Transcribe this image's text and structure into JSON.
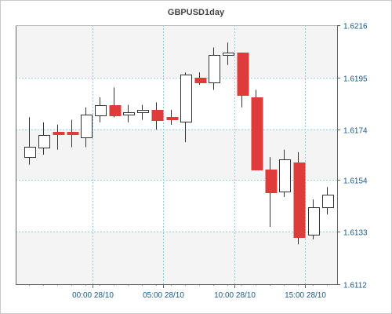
{
  "chart_data": {
    "type": "candlestick",
    "title": "GBPUSD1day",
    "xlabel": "",
    "ylabel": "",
    "ylim": [
      1.6112,
      1.6216
    ],
    "y_ticks": [
      "1.6216",
      "1.6195",
      "1.6174",
      "1.6154",
      "1.6133",
      "1.6112"
    ],
    "x_ticks": [
      "00:00 28/10",
      "05:00 28/10",
      "10:00 28/10",
      "15:00 28/10"
    ],
    "grid": true,
    "up_color": "#ffffff",
    "down_color": "#e03b3b",
    "candles": [
      {
        "open": 1.6163,
        "high": 1.6179,
        "low": 1.616,
        "close": 1.6167
      },
      {
        "open": 1.6167,
        "high": 1.6177,
        "low": 1.6164,
        "close": 1.6172
      },
      {
        "open": 1.6173,
        "high": 1.6176,
        "low": 1.6166,
        "close": 1.6172
      },
      {
        "open": 1.6173,
        "high": 1.6178,
        "low": 1.6167,
        "close": 1.6172
      },
      {
        "open": 1.6171,
        "high": 1.6183,
        "low": 1.6167,
        "close": 1.618
      },
      {
        "open": 1.618,
        "high": 1.6187,
        "low": 1.6177,
        "close": 1.6184
      },
      {
        "open": 1.6184,
        "high": 1.6191,
        "low": 1.6179,
        "close": 1.618
      },
      {
        "open": 1.618,
        "high": 1.6184,
        "low": 1.6177,
        "close": 1.6181
      },
      {
        "open": 1.6181,
        "high": 1.6184,
        "low": 1.6178,
        "close": 1.6182
      },
      {
        "open": 1.6182,
        "high": 1.6185,
        "low": 1.6174,
        "close": 1.6178
      },
      {
        "open": 1.6179,
        "high": 1.6182,
        "low": 1.6176,
        "close": 1.6178
      },
      {
        "open": 1.6177,
        "high": 1.6197,
        "low": 1.6169,
        "close": 1.6196
      },
      {
        "open": 1.6195,
        "high": 1.6197,
        "low": 1.6192,
        "close": 1.6193
      },
      {
        "open": 1.6193,
        "high": 1.6207,
        "low": 1.619,
        "close": 1.6204
      },
      {
        "open": 1.6204,
        "high": 1.6209,
        "low": 1.62,
        "close": 1.6205
      },
      {
        "open": 1.6205,
        "high": 1.6205,
        "low": 1.6183,
        "close": 1.6188
      },
      {
        "open": 1.6187,
        "high": 1.619,
        "low": 1.6158,
        "close": 1.6158
      },
      {
        "open": 1.6158,
        "high": 1.6163,
        "low": 1.6135,
        "close": 1.6149
      },
      {
        "open": 1.6149,
        "high": 1.6166,
        "low": 1.6147,
        "close": 1.6162
      },
      {
        "open": 1.6161,
        "high": 1.6165,
        "low": 1.6128,
        "close": 1.6131
      },
      {
        "open": 1.6132,
        "high": 1.6146,
        "low": 1.613,
        "close": 1.6143
      },
      {
        "open": 1.6143,
        "high": 1.6151,
        "low": 1.614,
        "close": 1.6148
      }
    ]
  }
}
